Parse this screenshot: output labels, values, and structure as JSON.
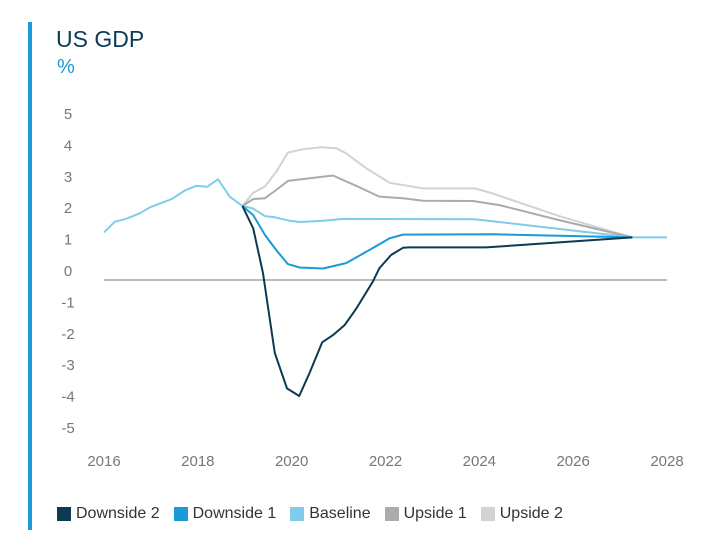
{
  "title": "US GDP",
  "unit": "%",
  "chart_data": {
    "type": "line",
    "title": "US GDP",
    "ylabel": "%",
    "xlabel": "",
    "xlim": [
      2016,
      2028
    ],
    "ylim": [
      -5,
      5
    ],
    "x_ticks": [
      "2016",
      "2018",
      "2020",
      "2022",
      "2024",
      "2026",
      "2028"
    ],
    "y_ticks": [
      "5",
      "4",
      "3",
      "2",
      "1",
      "0",
      "-1",
      "-2",
      "-3",
      "-4",
      "-5"
    ],
    "grid": false,
    "legend_position": "bottom",
    "series": [
      {
        "name": "Upside 2",
        "color": "#d2d2d2",
        "points": [
          [
            2018.95,
            2.07
          ],
          [
            2019.18,
            2.49
          ],
          [
            2019.43,
            2.69
          ],
          [
            2019.67,
            3.16
          ],
          [
            2019.92,
            3.77
          ],
          [
            2020.24,
            3.88
          ],
          [
            2020.63,
            3.94
          ],
          [
            2020.95,
            3.91
          ],
          [
            2021.16,
            3.75
          ],
          [
            2021.59,
            3.27
          ],
          [
            2022.09,
            2.81
          ],
          [
            2022.8,
            2.63
          ],
          [
            2023.9,
            2.63
          ],
          [
            2024.28,
            2.47
          ],
          [
            2025.7,
            1.75
          ],
          [
            2027.26,
            1.07
          ]
        ]
      },
      {
        "name": "Upside 1",
        "color": "#ababab",
        "points": [
          [
            2018.95,
            2.07
          ],
          [
            2019.18,
            2.29
          ],
          [
            2019.43,
            2.32
          ],
          [
            2019.67,
            2.58
          ],
          [
            2019.92,
            2.87
          ],
          [
            2020.88,
            3.04
          ],
          [
            2021.38,
            2.71
          ],
          [
            2021.87,
            2.37
          ],
          [
            2022.37,
            2.32
          ],
          [
            2022.8,
            2.24
          ],
          [
            2023.86,
            2.23
          ],
          [
            2024.43,
            2.1
          ],
          [
            2025.7,
            1.62
          ],
          [
            2027.26,
            1.07
          ]
        ]
      },
      {
        "name": "Baseline",
        "color": "#7fcdea",
        "points": [
          [
            2016.0,
            1.23
          ],
          [
            2016.23,
            1.57
          ],
          [
            2016.45,
            1.65
          ],
          [
            2016.77,
            1.84
          ],
          [
            2016.98,
            2.03
          ],
          [
            2017.44,
            2.29
          ],
          [
            2017.72,
            2.56
          ],
          [
            2017.96,
            2.71
          ],
          [
            2018.2,
            2.68
          ],
          [
            2018.43,
            2.92
          ],
          [
            2018.68,
            2.37
          ],
          [
            2018.95,
            2.07
          ],
          [
            2019.18,
            1.99
          ],
          [
            2019.43,
            1.75
          ],
          [
            2019.64,
            1.71
          ],
          [
            2019.96,
            1.6
          ],
          [
            2020.17,
            1.56
          ],
          [
            2020.67,
            1.6
          ],
          [
            2021.1,
            1.66
          ],
          [
            2023.9,
            1.65
          ],
          [
            2027.26,
            1.07
          ],
          [
            2028.0,
            1.07
          ]
        ]
      },
      {
        "name": "Downside 1",
        "color": "#1a9ad6",
        "points": [
          [
            2018.95,
            2.07
          ],
          [
            2019.18,
            1.78
          ],
          [
            2019.43,
            1.15
          ],
          [
            2019.67,
            0.67
          ],
          [
            2019.92,
            0.22
          ],
          [
            2020.17,
            0.11
          ],
          [
            2020.67,
            0.08
          ],
          [
            2021.16,
            0.25
          ],
          [
            2021.59,
            0.61
          ],
          [
            2022.09,
            1.04
          ],
          [
            2022.37,
            1.16
          ],
          [
            2024.28,
            1.17
          ],
          [
            2027.26,
            1.07
          ]
        ]
      },
      {
        "name": "Downside 2",
        "color": "#0b3a52",
        "points": [
          [
            2018.95,
            2.07
          ],
          [
            2019.18,
            1.36
          ],
          [
            2019.39,
            -0.07
          ],
          [
            2019.64,
            -2.61
          ],
          [
            2019.9,
            -3.74
          ],
          [
            2020.16,
            -3.98
          ],
          [
            2020.38,
            -3.25
          ],
          [
            2020.65,
            -2.27
          ],
          [
            2020.88,
            -2.04
          ],
          [
            2021.13,
            -1.72
          ],
          [
            2021.38,
            -1.19
          ],
          [
            2021.73,
            -0.34
          ],
          [
            2021.87,
            0.09
          ],
          [
            2022.12,
            0.51
          ],
          [
            2022.37,
            0.74
          ],
          [
            2022.5,
            0.75
          ],
          [
            2024.14,
            0.75
          ],
          [
            2027.26,
            1.07
          ]
        ]
      }
    ]
  },
  "legend": [
    {
      "label": "Downside 2",
      "color": "#0b3a52"
    },
    {
      "label": "Downside 1",
      "color": "#1a9ad6"
    },
    {
      "label": "Baseline",
      "color": "#7fcdea"
    },
    {
      "label": "Upside 1",
      "color": "#ababab"
    },
    {
      "label": "Upside 2",
      "color": "#d2d2d2"
    }
  ]
}
